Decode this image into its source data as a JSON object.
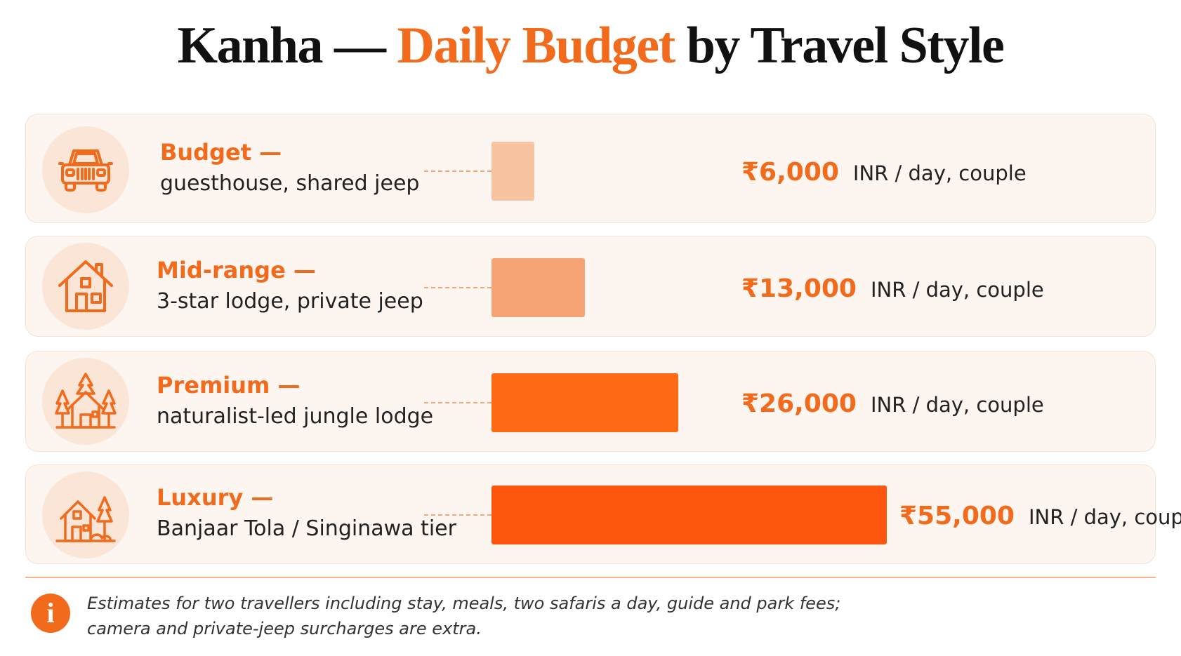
{
  "title": {
    "prefix": "Kanha — ",
    "accent": "Daily Budget",
    "suffix": " by Travel Style"
  },
  "colors": {
    "accent": "#f26a1b",
    "bar_colors": [
      "#f8c3a1",
      "#f6a475",
      "#ff6a14",
      "#ff560f"
    ]
  },
  "chart_data": {
    "type": "bar",
    "orientation": "horizontal",
    "title": "Kanha — Daily Budget by Travel Style",
    "categories": [
      "Budget",
      "Mid-range",
      "Premium",
      "Luxury"
    ],
    "descriptions": [
      "guesthouse, shared jeep",
      "3-star lodge, private jeep",
      "naturalist-led jungle lodge",
      "Banjaar Tola / Singinawa tier"
    ],
    "values": [
      6000,
      13000,
      26000,
      55000
    ],
    "value_labels": [
      "₹6,000",
      "₹13,000",
      "₹26,000",
      "₹55,000"
    ],
    "unit_label": "INR / day, couple",
    "icons": [
      "jeep-icon",
      "house-icon",
      "jungle-lodge-icon",
      "luxury-lodge-icon"
    ],
    "grid": false
  },
  "rows": [
    {
      "tier": "Budget —",
      "desc": "guesthouse, shared jeep",
      "amount": "₹6,000",
      "unit": "INR / day, couple"
    },
    {
      "tier": "Mid-range —",
      "desc": "3-star lodge, private jeep",
      "amount": "₹13,000",
      "unit": "INR / day, couple"
    },
    {
      "tier": "Premium —",
      "desc": "naturalist-led jungle lodge",
      "amount": "₹26,000",
      "unit": "INR / day, couple"
    },
    {
      "tier": "Luxury —",
      "desc": "Banjaar Tola / Singinawa tier",
      "amount": "₹55,000",
      "unit": "INR / day, couple"
    }
  ],
  "footnote": {
    "icon": "info-icon",
    "line1": "Estimates for two travellers including stay, meals, two safaris a day, guide and park fees;",
    "line2": "camera and private-jeep surcharges are extra."
  }
}
